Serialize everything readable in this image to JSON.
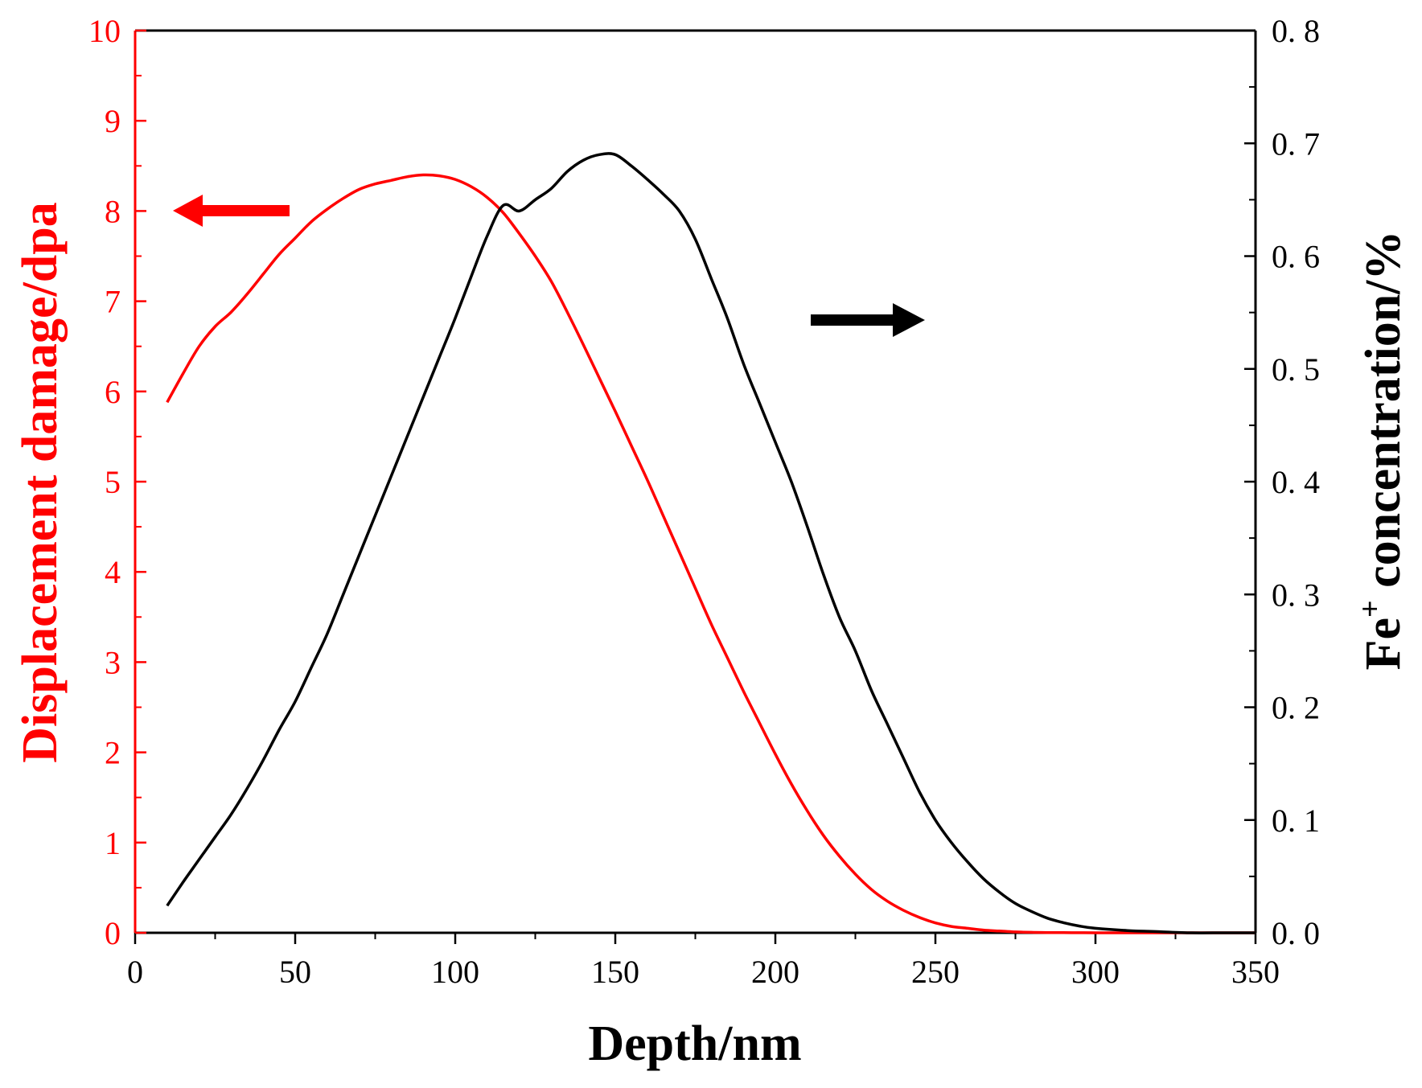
{
  "chart_data": {
    "type": "line",
    "title": "",
    "xlabel": "Depth/nm",
    "ylabel_left": "Displacement damage/dpa",
    "ylabel_right": {
      "main": "Fe",
      "sup": "+",
      "rest": " concentration/%"
    },
    "xlim": [
      0,
      350
    ],
    "ylim_left": [
      0,
      10
    ],
    "ylim_right": [
      0,
      0.8
    ],
    "x_ticks": [
      "0",
      "50",
      "100",
      "150",
      "200",
      "250",
      "300",
      "350"
    ],
    "y_left_ticks": [
      "0",
      "1",
      "2",
      "3",
      "4",
      "5",
      "6",
      "7",
      "8",
      "9",
      "10"
    ],
    "y_right_ticks": [
      "0. 0",
      "0. 1",
      "0. 2",
      "0. 3",
      "0. 4",
      "0. 5",
      "0. 6",
      "0. 7",
      "0. 8"
    ],
    "colors": {
      "left": "#ff0000",
      "right": "#000000"
    },
    "series": [
      {
        "name": "Displacement damage",
        "axis": "left",
        "color": "#ff0000",
        "x": [
          10,
          15,
          20,
          25,
          30,
          35,
          40,
          45,
          50,
          55,
          60,
          65,
          70,
          75,
          80,
          85,
          90,
          95,
          100,
          105,
          110,
          115,
          120,
          125,
          130,
          135,
          140,
          145,
          150,
          155,
          160,
          165,
          170,
          175,
          180,
          185,
          190,
          195,
          200,
          205,
          210,
          215,
          220,
          225,
          230,
          235,
          240,
          245,
          250,
          255,
          260,
          265,
          270,
          275,
          280,
          285,
          290,
          295,
          300,
          310,
          320,
          330,
          340,
          350
        ],
        "values": [
          5.88,
          6.2,
          6.5,
          6.72,
          6.88,
          7.08,
          7.3,
          7.52,
          7.7,
          7.88,
          8.02,
          8.14,
          8.24,
          8.3,
          8.34,
          8.38,
          8.4,
          8.39,
          8.35,
          8.27,
          8.15,
          7.98,
          7.75,
          7.5,
          7.22,
          6.88,
          6.52,
          6.15,
          5.78,
          5.4,
          5.02,
          4.62,
          4.22,
          3.82,
          3.42,
          3.05,
          2.68,
          2.33,
          1.98,
          1.65,
          1.35,
          1.08,
          0.85,
          0.65,
          0.48,
          0.35,
          0.25,
          0.17,
          0.11,
          0.07,
          0.05,
          0.03,
          0.02,
          0.01,
          0.005,
          0.003,
          0.002,
          0.001,
          0.0,
          0.0,
          0.0,
          0.0,
          0.0,
          0.0
        ]
      },
      {
        "name": "Fe+ concentration",
        "axis": "right",
        "color": "#000000",
        "x": [
          10,
          15,
          20,
          25,
          30,
          35,
          40,
          45,
          50,
          55,
          60,
          65,
          70,
          75,
          80,
          85,
          90,
          95,
          100,
          105,
          110,
          115,
          120,
          125,
          130,
          135,
          140,
          145,
          150,
          155,
          160,
          165,
          170,
          175,
          180,
          185,
          190,
          195,
          200,
          205,
          210,
          215,
          220,
          225,
          230,
          235,
          240,
          245,
          250,
          255,
          260,
          265,
          270,
          275,
          280,
          285,
          290,
          295,
          300,
          310,
          320,
          330,
          340,
          350
        ],
        "values": [
          0.024,
          0.045,
          0.065,
          0.085,
          0.105,
          0.128,
          0.153,
          0.18,
          0.205,
          0.235,
          0.265,
          0.3,
          0.335,
          0.37,
          0.405,
          0.44,
          0.475,
          0.51,
          0.545,
          0.582,
          0.618,
          0.645,
          0.64,
          0.65,
          0.66,
          0.675,
          0.685,
          0.69,
          0.69,
          0.68,
          0.668,
          0.655,
          0.64,
          0.615,
          0.58,
          0.545,
          0.505,
          0.47,
          0.435,
          0.4,
          0.36,
          0.318,
          0.28,
          0.25,
          0.215,
          0.185,
          0.155,
          0.125,
          0.1,
          0.08,
          0.063,
          0.048,
          0.036,
          0.026,
          0.019,
          0.013,
          0.009,
          0.006,
          0.004,
          0.002,
          0.001,
          0.0,
          0.0,
          0.0
        ]
      }
    ],
    "annotations": [
      {
        "type": "arrow",
        "direction": "left",
        "color": "#ff0000",
        "meaning": "left axis"
      },
      {
        "type": "arrow",
        "direction": "right",
        "color": "#000000",
        "meaning": "right axis"
      }
    ]
  }
}
